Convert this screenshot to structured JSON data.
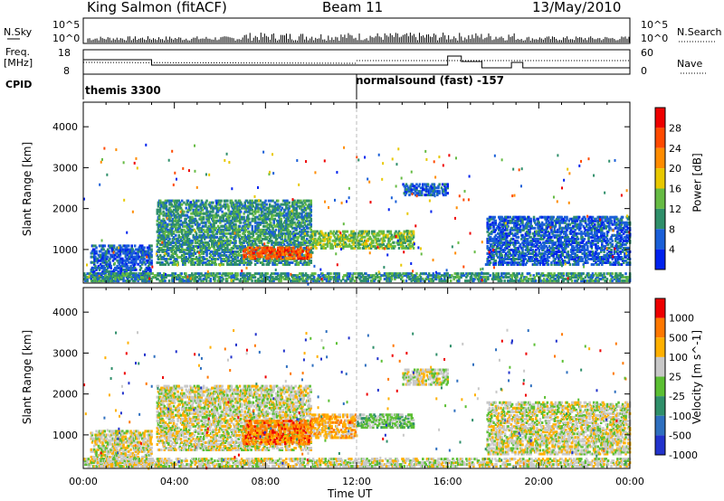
{
  "header": {
    "station": "King Salmon (fitACF)",
    "beam": "Beam 11",
    "date": "13/May/2010"
  },
  "nsky": {
    "left_label": "N.Sky",
    "right_label": "N.Search",
    "scale_top": "10^5",
    "scale_bottom": "10^0"
  },
  "freq": {
    "left_label_1": "Freq.",
    "left_label_2": "[MHz]",
    "right_label": "Nave",
    "left_ticks": [
      "18",
      "8"
    ],
    "right_ticks": [
      "60",
      "0"
    ]
  },
  "cpid": {
    "label": "CPID",
    "entries": [
      "themis 3300",
      "normalsound (fast) -157"
    ]
  },
  "chart_data": [
    {
      "type": "heatmap",
      "name": "power",
      "ylabel": "Slant Range [km]",
      "yticks": [
        1000,
        2000,
        3000,
        4000
      ],
      "ylim": [
        180,
        4600
      ],
      "xlim": [
        0,
        24
      ],
      "colorbar_label": "Power [dB]",
      "colorbar_ticks": [
        "28",
        "24",
        "20",
        "16",
        "12",
        "8",
        "4"
      ],
      "colors": [
        "#0022ee",
        "#1a5fd8",
        "#2f8f6a",
        "#66bb44",
        "#e8c800",
        "#ff8c00",
        "#ff4a00",
        "#ee0000"
      ],
      "scatter_regions": [
        {
          "x0": 0.3,
          "x1": 3.0,
          "r0": 200,
          "r1": 1100,
          "level": 1
        },
        {
          "x0": 3.2,
          "x1": 10.0,
          "r0": 600,
          "r1": 2200,
          "level": 2
        },
        {
          "x0": 7.0,
          "x1": 10.0,
          "r0": 750,
          "r1": 1050,
          "level": 6
        },
        {
          "x0": 10.0,
          "x1": 14.5,
          "r0": 1000,
          "r1": 1450,
          "level": 3
        },
        {
          "x0": 14.0,
          "x1": 16.0,
          "r0": 2300,
          "r1": 2600,
          "level": 1
        },
        {
          "x0": 17.7,
          "x1": 24.0,
          "r0": 600,
          "r1": 1800,
          "level": 1
        },
        {
          "x0": 0.0,
          "x1": 24.0,
          "r0": 200,
          "r1": 420,
          "level": 2
        }
      ]
    },
    {
      "type": "heatmap",
      "name": "velocity",
      "ylabel": "Slant Range [km]",
      "yticks": [
        1000,
        2000,
        3000,
        4000
      ],
      "ylim": [
        180,
        4600
      ],
      "xlim": [
        0,
        24
      ],
      "xticks": [
        "00:00",
        "04:00",
        "08:00",
        "12:00",
        "16:00",
        "20:00",
        "00:00"
      ],
      "xlabel": "Time UT",
      "colorbar_label": "Velocity [m s^-1]",
      "colorbar_ticks": [
        "1000",
        "500",
        "100",
        "25",
        "-25",
        "-100",
        "-500",
        "-1000"
      ],
      "colors": [
        "#2233cc",
        "#2e6fbf",
        "#2f8f6a",
        "#5bbf33",
        "#c8c8c8",
        "#ffb000",
        "#ff7800",
        "#ee0000"
      ],
      "scatter_regions": [
        {
          "x0": 0.3,
          "x1": 3.0,
          "r0": 200,
          "r1": 1100,
          "level": 4
        },
        {
          "x0": 3.2,
          "x1": 10.0,
          "r0": 600,
          "r1": 2200,
          "level": 4
        },
        {
          "x0": 7.0,
          "x1": 10.0,
          "r0": 750,
          "r1": 1350,
          "level": 6
        },
        {
          "x0": 10.0,
          "x1": 12.0,
          "r0": 900,
          "r1": 1500,
          "level": 5
        },
        {
          "x0": 12.0,
          "x1": 14.5,
          "r0": 1150,
          "r1": 1500,
          "level": 3
        },
        {
          "x0": 14.0,
          "x1": 16.0,
          "r0": 2200,
          "r1": 2600,
          "level": 4
        },
        {
          "x0": 17.7,
          "x1": 24.0,
          "r0": 500,
          "r1": 1800,
          "level": 4
        },
        {
          "x0": 0.0,
          "x1": 24.0,
          "r0": 200,
          "r1": 420,
          "level": 4
        }
      ]
    }
  ]
}
